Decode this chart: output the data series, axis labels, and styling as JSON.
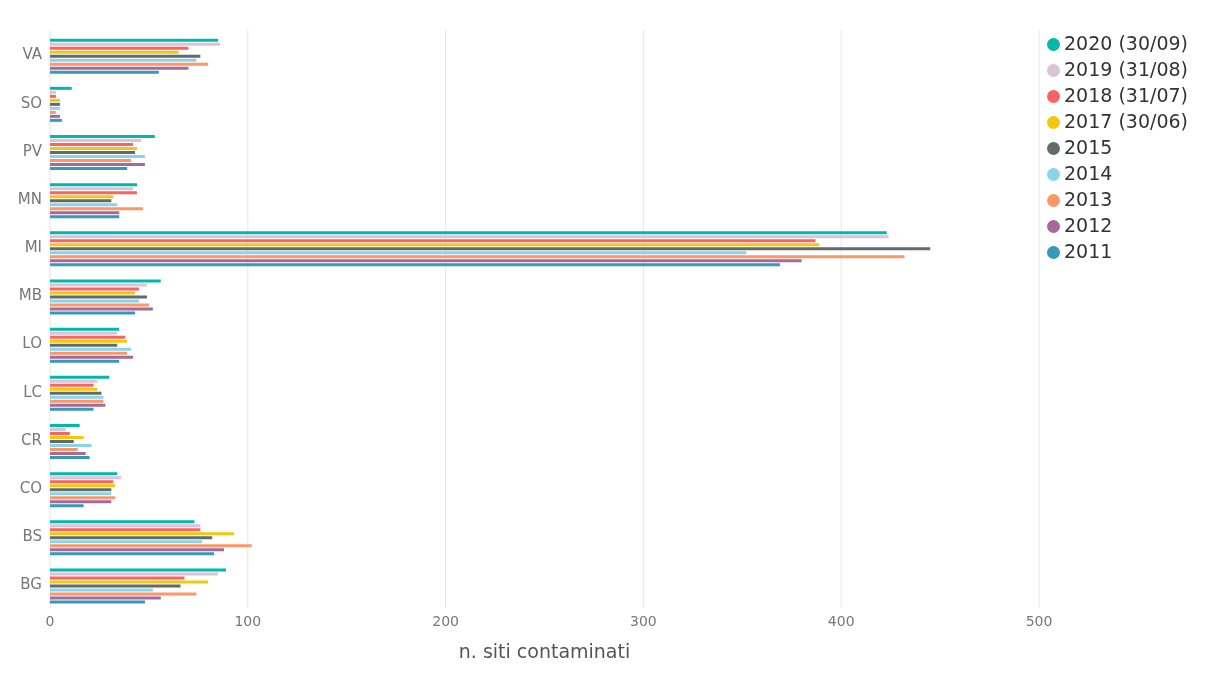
{
  "chart_data": {
    "type": "bar",
    "orientation": "horizontal",
    "xlabel": "n. siti contaminati",
    "categories": [
      "VA",
      "SO",
      "PV",
      "MN",
      "MI",
      "MB",
      "LO",
      "LC",
      "CR",
      "CO",
      "BS",
      "BG"
    ],
    "series": [
      {
        "name": "2020 (30/09)",
        "color": "#01b8aa",
        "values": [
          85,
          11,
          53,
          44,
          423,
          56,
          35,
          30,
          15,
          34,
          73,
          89
        ]
      },
      {
        "name": "2019 (31/08)",
        "color": "#dbc3da",
        "values": [
          86,
          3,
          46,
          42,
          424,
          49,
          34,
          24,
          8,
          36,
          76,
          85
        ]
      },
      {
        "name": "2018 (31/07)",
        "color": "#fd625e",
        "values": [
          70,
          3,
          42,
          44,
          387,
          45,
          38,
          22,
          10,
          32,
          76,
          68
        ]
      },
      {
        "name": "2017 (30/06)",
        "color": "#f2c80f",
        "values": [
          65,
          5,
          44,
          32,
          389,
          43,
          39,
          24,
          17,
          33,
          93,
          80
        ]
      },
      {
        "name": "2015",
        "color": "#5f6b6d",
        "values": [
          76,
          5,
          43,
          31,
          445,
          49,
          34,
          26,
          12,
          31,
          82,
          66
        ]
      },
      {
        "name": "2014",
        "color": "#8ad4eb",
        "values": [
          74,
          5,
          48,
          34,
          352,
          45,
          41,
          27,
          21,
          31,
          77,
          52
        ]
      },
      {
        "name": "2013",
        "color": "#fe9666",
        "values": [
          80,
          3,
          41,
          47,
          432,
          50,
          39,
          27,
          14,
          33,
          102,
          74
        ]
      },
      {
        "name": "2012",
        "color": "#a66999",
        "values": [
          70,
          5,
          48,
          35,
          380,
          52,
          42,
          28,
          18,
          31,
          88,
          56
        ]
      },
      {
        "name": "2011",
        "color": "#3599b8",
        "values": [
          55,
          6,
          39,
          35,
          369,
          43,
          35,
          22,
          20,
          17,
          83,
          48
        ]
      }
    ],
    "xlim": [
      0,
      500
    ],
    "xticks": [
      0,
      100,
      200,
      300,
      400,
      500
    ],
    "grid": "x",
    "legend": "top right"
  }
}
